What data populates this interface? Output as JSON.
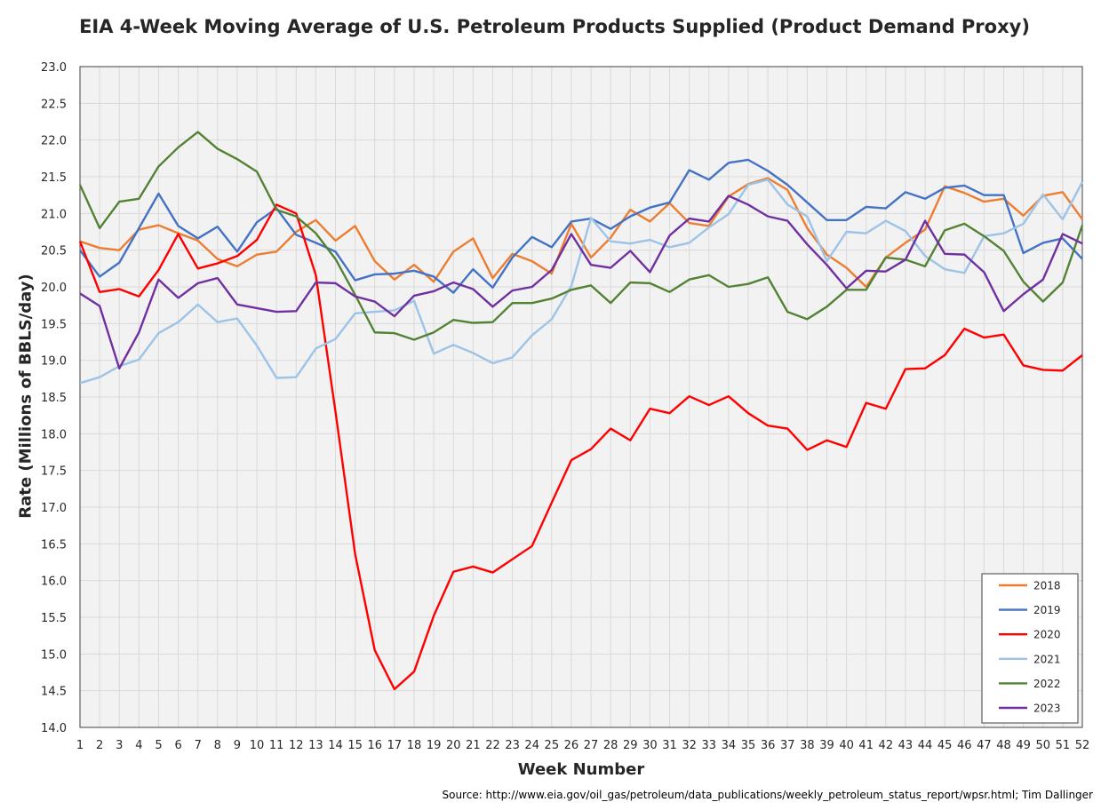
{
  "chart_data": {
    "type": "line",
    "title": "EIA 4-Week Moving Average of U.S. Petroleum Products Supplied (Product Demand Proxy)",
    "xlabel": "Week Number",
    "ylabel": "Rate (Millions of BBLS/day)",
    "source": "Source: http://www.eia.gov/oil_gas/petroleum/data_publications/weekly_petroleum_status_report/wpsr.html; Tim Dallinger",
    "xlim": [
      1,
      52
    ],
    "ylim": [
      14.0,
      23.0
    ],
    "y_step": 0.5,
    "grid": true,
    "legend_position": "bottom-right",
    "x": [
      1,
      2,
      3,
      4,
      5,
      6,
      7,
      8,
      9,
      10,
      11,
      12,
      13,
      14,
      15,
      16,
      17,
      18,
      19,
      20,
      21,
      22,
      23,
      24,
      25,
      26,
      27,
      28,
      29,
      30,
      31,
      32,
      33,
      34,
      35,
      36,
      37,
      38,
      39,
      40,
      41,
      42,
      43,
      44,
      45,
      46,
      47,
      48,
      49,
      50,
      51,
      52
    ],
    "x_ticks": [
      "1",
      "2",
      "3",
      "4",
      "5",
      "6",
      "7",
      "8",
      "9",
      "10",
      "11",
      "12",
      "13",
      "14",
      "15",
      "16",
      "17",
      "18",
      "19",
      "20",
      "21",
      "22",
      "23",
      "24",
      "25",
      "26",
      "27",
      "28",
      "29",
      "30",
      "31",
      "32",
      "33",
      "34",
      "35",
      "36",
      "37",
      "38",
      "39",
      "40",
      "41",
      "42",
      "43",
      "44",
      "45",
      "46",
      "47",
      "48",
      "49",
      "50",
      "51",
      "52"
    ],
    "y_ticks": [
      "14.0",
      "14.5",
      "15.0",
      "15.5",
      "16.0",
      "16.5",
      "17.0",
      "17.5",
      "18.0",
      "18.5",
      "19.0",
      "19.5",
      "20.0",
      "20.5",
      "21.0",
      "21.5",
      "22.0",
      "22.5",
      "23.0"
    ],
    "series": [
      {
        "name": "2018",
        "color": "#ED7D31",
        "values": [
          20.62,
          20.53,
          20.5,
          20.78,
          20.84,
          20.73,
          20.63,
          20.38,
          20.28,
          20.44,
          20.48,
          20.75,
          20.91,
          20.63,
          20.83,
          20.35,
          20.1,
          20.3,
          20.07,
          20.48,
          20.66,
          20.12,
          20.45,
          20.35,
          20.18,
          20.86,
          20.4,
          20.67,
          21.05,
          20.89,
          21.14,
          20.87,
          20.83,
          21.23,
          21.4,
          21.48,
          21.32,
          20.8,
          20.44,
          20.26,
          20.0,
          20.4,
          20.6,
          20.78,
          21.37,
          21.28,
          21.16,
          21.2,
          20.97,
          21.24,
          21.29,
          20.92
        ]
      },
      {
        "name": "2019",
        "color": "#4472C4",
        "values": [
          20.5,
          20.14,
          20.33,
          20.8,
          21.27,
          20.83,
          20.66,
          20.82,
          20.48,
          20.88,
          21.07,
          20.71,
          20.6,
          20.48,
          20.09,
          20.17,
          20.18,
          20.22,
          20.14,
          19.92,
          20.24,
          19.99,
          20.4,
          20.68,
          20.54,
          20.89,
          20.93,
          20.79,
          20.96,
          21.08,
          21.15,
          21.59,
          21.46,
          21.69,
          21.73,
          21.58,
          21.39,
          21.15,
          20.91,
          20.91,
          21.09,
          21.07,
          21.29,
          21.2,
          21.35,
          21.38,
          21.25,
          21.25,
          20.46,
          20.6,
          20.66,
          20.38
        ]
      },
      {
        "name": "2020",
        "color": "#FF0000",
        "values": [
          20.62,
          19.93,
          19.97,
          19.87,
          20.23,
          20.72,
          20.25,
          20.32,
          20.42,
          20.64,
          21.12,
          21.0,
          20.16,
          18.3,
          16.36,
          15.05,
          14.52,
          14.76,
          15.52,
          16.12,
          16.19,
          16.11,
          16.29,
          16.47,
          17.06,
          17.64,
          17.79,
          18.07,
          17.91,
          18.34,
          18.28,
          18.51,
          18.39,
          18.51,
          18.28,
          18.11,
          18.07,
          17.78,
          17.91,
          17.82,
          18.42,
          18.34,
          18.88,
          18.89,
          19.07,
          19.43,
          19.31,
          19.35,
          18.93,
          18.87,
          18.86,
          19.07
        ]
      },
      {
        "name": "2021",
        "color": "#9DC3E6",
        "values": [
          18.69,
          18.77,
          18.92,
          19.01,
          19.37,
          19.52,
          19.76,
          19.52,
          19.57,
          19.2,
          18.76,
          18.77,
          19.16,
          19.29,
          19.64,
          19.66,
          19.68,
          19.81,
          19.09,
          19.21,
          19.1,
          18.96,
          19.04,
          19.34,
          19.56,
          20.01,
          20.94,
          20.62,
          20.59,
          20.64,
          20.54,
          20.6,
          20.81,
          20.99,
          21.39,
          21.46,
          21.12,
          20.96,
          20.35,
          20.75,
          20.73,
          20.9,
          20.76,
          20.42,
          20.24,
          20.19,
          20.69,
          20.73,
          20.86,
          21.26,
          20.92,
          21.43
        ]
      },
      {
        "name": "2022",
        "color": "#548235",
        "values": [
          21.39,
          20.8,
          21.16,
          21.2,
          21.64,
          21.9,
          22.11,
          21.88,
          21.74,
          21.57,
          21.05,
          20.96,
          20.73,
          20.38,
          19.89,
          19.38,
          19.37,
          19.28,
          19.38,
          19.55,
          19.51,
          19.52,
          19.78,
          19.78,
          19.84,
          19.96,
          20.02,
          19.78,
          20.06,
          20.05,
          19.93,
          20.1,
          20.16,
          20.0,
          20.04,
          20.13,
          19.66,
          19.56,
          19.73,
          19.96,
          19.96,
          20.4,
          20.37,
          20.28,
          20.77,
          20.86,
          20.69,
          20.49,
          20.07,
          19.8,
          20.06,
          20.84
        ]
      },
      {
        "name": "2023",
        "color": "#7030A0",
        "values": [
          19.91,
          19.74,
          18.89,
          19.38,
          20.1,
          19.85,
          20.05,
          20.12,
          19.76,
          19.71,
          19.66,
          19.67,
          20.06,
          20.05,
          19.87,
          19.8,
          19.6,
          19.88,
          19.94,
          20.06,
          19.97,
          19.73,
          19.95,
          20.0,
          20.23,
          20.72,
          20.3,
          20.26,
          20.49,
          20.2,
          20.7,
          20.93,
          20.89,
          21.24,
          21.12,
          20.96,
          20.9,
          20.58,
          20.3,
          19.98,
          20.22,
          20.21,
          20.37,
          20.9,
          20.45,
          20.44,
          20.2,
          19.67,
          19.9,
          20.1,
          20.72,
          20.59
        ]
      }
    ]
  }
}
